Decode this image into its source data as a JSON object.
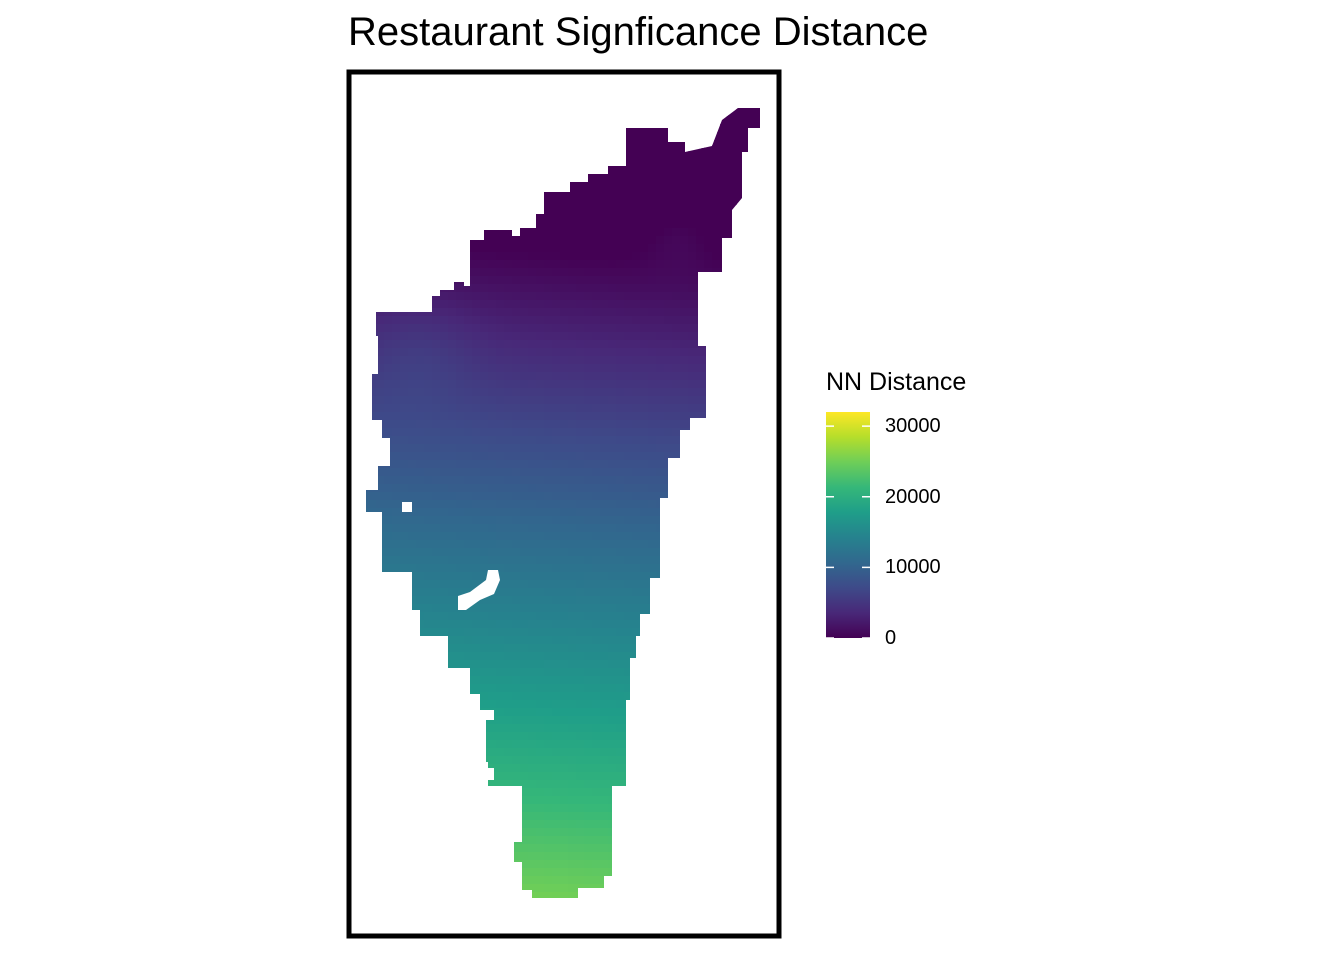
{
  "chart_data": {
    "type": "heatmap",
    "title": "Restaurant Signficance Distance",
    "legend": {
      "title": "NN Distance",
      "placement": "right",
      "ticks": [
        0,
        10000,
        20000,
        30000
      ],
      "range": [
        0,
        32000
      ],
      "colormap": "viridis"
    },
    "grid": false,
    "panel_border": true,
    "color_stops": [
      "#440154",
      "#482878",
      "#3e4a89",
      "#31688e",
      "#26828e",
      "#1f9e89",
      "#35b779",
      "#6ece58",
      "#b5de2b",
      "#fde725"
    ]
  }
}
